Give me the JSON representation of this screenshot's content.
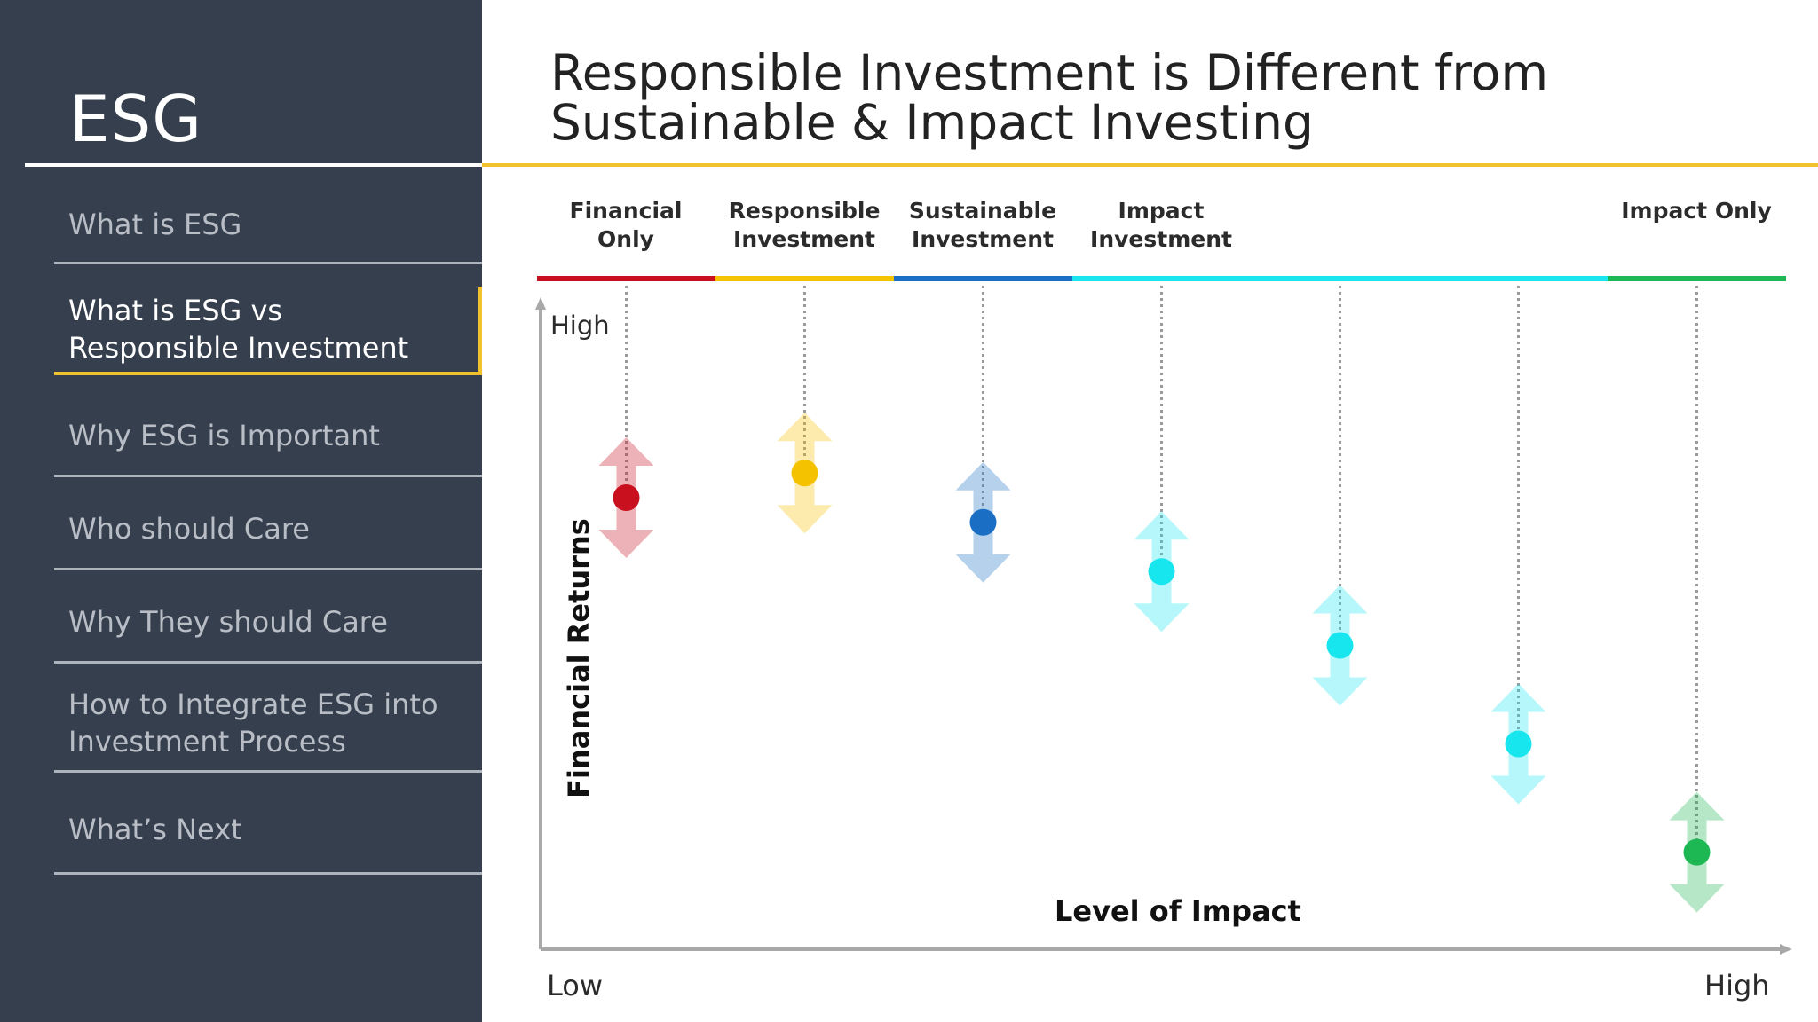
{
  "sidebar": {
    "brand": "ESG",
    "items": [
      {
        "label": "What is ESG",
        "active": false
      },
      {
        "label": "What is ESG vs Responsible Investment",
        "active": true
      },
      {
        "label": "Why ESG is Important",
        "active": false
      },
      {
        "label": "Who should Care",
        "active": false
      },
      {
        "label": "Why They should Care",
        "active": false
      },
      {
        "label": "How to Integrate ESG into Investment Process",
        "active": false
      },
      {
        "label": "What’s Next",
        "active": false
      }
    ]
  },
  "header": {
    "title_line1": "Responsible Investment is Different from",
    "title_line2": "Sustainable & Impact Investing"
  },
  "diagram": {
    "categories": [
      {
        "label_line1": "Financial",
        "label_line2": "Only",
        "color": "#c8101e"
      },
      {
        "label_line1": "Responsible",
        "label_line2": "Investment",
        "color": "#f5c200"
      },
      {
        "label_line1": "Sustainable",
        "label_line2": "Investment",
        "color": "#1a6fc4"
      },
      {
        "label_line1": "Impact",
        "label_line2": "Investment",
        "color": "#18e6ee"
      },
      {
        "label_line1": "",
        "label_line2": "",
        "color": "#18e6ee"
      },
      {
        "label_line1": "",
        "label_line2": "",
        "color": "#18e6ee"
      },
      {
        "label_line1": "Impact Only",
        "label_line2": "",
        "color": "#1db854"
      }
    ],
    "y_axis_label": "Financial Returns",
    "x_axis_label": "Level of Impact",
    "y_high_label": "High",
    "x_low_label": "Low",
    "x_high_label": "High",
    "points": [
      {
        "impact": 1,
        "returns": 0.8,
        "color": "#c8101e"
      },
      {
        "impact": 2,
        "returns": 0.85,
        "color": "#f5c200"
      },
      {
        "impact": 3,
        "returns": 0.75,
        "color": "#1a6fc4"
      },
      {
        "impact": 4,
        "returns": 0.65,
        "color": "#18e6ee"
      },
      {
        "impact": 5,
        "returns": 0.5,
        "color": "#18e6ee"
      },
      {
        "impact": 6,
        "returns": 0.3,
        "color": "#18e6ee"
      },
      {
        "impact": 7,
        "returns": 0.08,
        "color": "#1db854"
      }
    ]
  }
}
